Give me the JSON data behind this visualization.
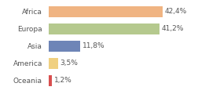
{
  "categories": [
    "Africa",
    "Europa",
    "Asia",
    "America",
    "Oceania"
  ],
  "values": [
    42.4,
    41.2,
    11.8,
    3.5,
    1.2
  ],
  "labels": [
    "42,4%",
    "41,2%",
    "11,8%",
    "3,5%",
    "1,2%"
  ],
  "colors": [
    "#f0b482",
    "#b5c98e",
    "#6e85b7",
    "#f0d080",
    "#d94f4f"
  ],
  "xlim": [
    0,
    62
  ],
  "background_color": "#ffffff",
  "label_fontsize": 6.5,
  "bar_height": 0.65,
  "figwidth": 2.8,
  "figheight": 1.2,
  "dpi": 100
}
